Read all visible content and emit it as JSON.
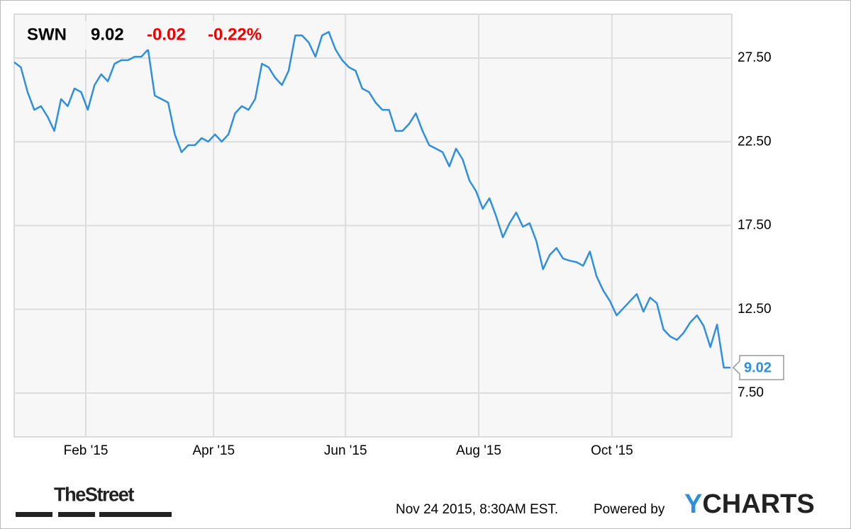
{
  "chart_data": {
    "type": "line",
    "header": {
      "ticker": "SWN",
      "price": "9.02",
      "change": "-0.02",
      "change_pct": "-0.22%"
    },
    "values": [
      27.25,
      26.95,
      25.47,
      24.41,
      24.63,
      23.99,
      23.15,
      25.05,
      24.63,
      25.68,
      25.47,
      24.41,
      25.89,
      26.53,
      26.11,
      27.16,
      27.37,
      27.37,
      27.58,
      27.58,
      28.01,
      25.26,
      25.05,
      24.84,
      22.94,
      21.88,
      22.3,
      22.3,
      22.72,
      22.51,
      22.94,
      22.51,
      22.94,
      24.2,
      24.63,
      24.41,
      25.05,
      27.16,
      26.95,
      26.32,
      25.89,
      26.74,
      28.85,
      28.85,
      28.43,
      27.58,
      28.85,
      29.06,
      28.01,
      27.37,
      26.95,
      26.74,
      25.68,
      25.47,
      24.84,
      24.41,
      24.41,
      23.15,
      23.15,
      23.57,
      24.2,
      23.15,
      22.3,
      22.09,
      21.88,
      21.03,
      22.09,
      21.45,
      20.19,
      19.55,
      18.5,
      19.13,
      18.06,
      16.8,
      17.64,
      18.28,
      17.43,
      17.64,
      16.58,
      14.89,
      15.74,
      16.16,
      15.53,
      15.4,
      15.32,
      15.1,
      15.95,
      14.47,
      13.62,
      12.99,
      12.14,
      12.56,
      12.99,
      13.41,
      12.36,
      13.2,
      12.86,
      11.3,
      10.88,
      10.67,
      11.09,
      11.72,
      12.14,
      11.51,
      10.24,
      11.59,
      9.02,
      9.02
    ],
    "color": "#2e8fde",
    "xlim": [
      0,
      107
    ],
    "xticks": [
      {
        "value": 10.7,
        "label": "Feb '15"
      },
      {
        "value": 29.8,
        "label": "Apr '15"
      },
      {
        "value": 49.5,
        "label": "Jun '15"
      },
      {
        "value": 69.4,
        "label": "Aug '15"
      },
      {
        "value": 89.3,
        "label": "Oct '15"
      }
    ],
    "ylim": [
      4.88,
      30.12
    ],
    "yticks": [
      {
        "value": 7.5,
        "label": "7.50"
      },
      {
        "value": 12.5,
        "label": "12.50"
      },
      {
        "value": 17.5,
        "label": "17.50"
      },
      {
        "value": 22.5,
        "label": "22.50"
      },
      {
        "value": 27.5,
        "label": "27.50"
      }
    ],
    "grid": true,
    "footer": {
      "timestamp": "Nov 24 2015, 8:30AM EST.",
      "powered_by": "Powered by",
      "logo_y": "Y",
      "logo_rest": "CHARTS",
      "source_logo": "TheStreet"
    }
  }
}
